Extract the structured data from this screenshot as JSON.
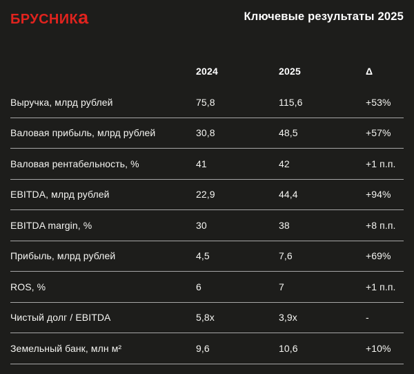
{
  "brand": {
    "logo_text_main": "БРУСНИК",
    "logo_text_last": "а",
    "logo_color": "#e0231e"
  },
  "header": {
    "title": "Ключевые результаты 2025"
  },
  "table": {
    "columns": [
      "2024",
      "2025",
      "Δ"
    ],
    "rows": [
      {
        "label": "Выручка, млрд рублей",
        "v2024": "75,8",
        "v2025": "115,6",
        "delta": "+53%"
      },
      {
        "label": "Валовая прибыль, млрд рублей",
        "v2024": "30,8",
        "v2025": "48,5",
        "delta": "+57%"
      },
      {
        "label": "Валовая рентабельность, %",
        "v2024": "41",
        "v2025": "42",
        "delta": "+1 п.п."
      },
      {
        "label": "EBITDA, млрд рублей",
        "v2024": "22,9",
        "v2025": "44,4",
        "delta": "+94%"
      },
      {
        "label": "EBITDA margin, %",
        "v2024": "30",
        "v2025": "38",
        "delta": "+8 п.п."
      },
      {
        "label": "Прибыль, млрд рублей",
        "v2024": "4,5",
        "v2025": "7,6",
        "delta": "+69%"
      },
      {
        "label": "ROS, %",
        "v2024": "6",
        "v2025": "7",
        "delta": "+1 п.п."
      },
      {
        "label": "Чистый долг / EBITDA",
        "v2024": "5,8x",
        "v2025": "3,9x",
        "delta": "-"
      },
      {
        "label": "Земельный банк, млн м²",
        "v2024": "9,6",
        "v2025": "10,6",
        "delta": "+10%"
      }
    ]
  },
  "colors": {
    "background": "#1d1d1b",
    "text": "#f5f5f2",
    "divider": "#a8a8a8",
    "accent_red": "#e0231e"
  },
  "chart_data": {
    "type": "table",
    "title": "Ключевые результаты 2025",
    "columns": [
      "",
      "2024",
      "2025",
      "Δ"
    ],
    "rows": [
      [
        "Выручка, млрд рублей",
        "75,8",
        "115,6",
        "+53%"
      ],
      [
        "Валовая прибыль, млрд рублей",
        "30,8",
        "48,5",
        "+57%"
      ],
      [
        "Валовая рентабельность, %",
        "41",
        "42",
        "+1 п.п."
      ],
      [
        "EBITDA, млрд рублей",
        "22,9",
        "44,4",
        "+94%"
      ],
      [
        "EBITDA margin, %",
        "30",
        "38",
        "+8 п.п."
      ],
      [
        "Прибыль, млрд рублей",
        "4,5",
        "7,6",
        "+69%"
      ],
      [
        "ROS, %",
        "6",
        "7",
        "+1 п.п."
      ],
      [
        "Чистый долг / EBITDA",
        "5,8x",
        "3,9x",
        "-"
      ],
      [
        "Земельный банк, млн м²",
        "9,6",
        "10,6",
        "+10%"
      ]
    ]
  }
}
